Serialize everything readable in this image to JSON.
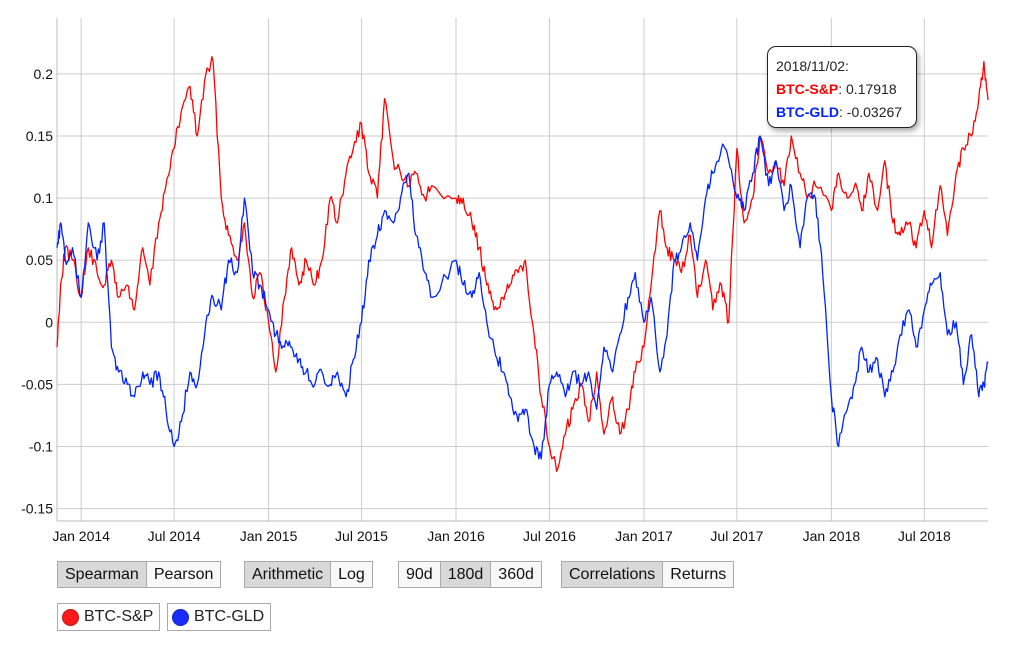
{
  "chart_data": {
    "type": "line",
    "title": "",
    "xlabel": "",
    "ylabel": "",
    "x_range": [
      "2013-11-15",
      "2018-11-02"
    ],
    "ylim": [
      -0.16,
      0.245
    ],
    "grid": true,
    "x_tick_labels": [
      {
        "date": "2014-01-01",
        "label": "Jan 2014"
      },
      {
        "date": "2014-07-01",
        "label": "Jul 2014"
      },
      {
        "date": "2015-01-01",
        "label": "Jan 2015"
      },
      {
        "date": "2015-07-01",
        "label": "Jul 2015"
      },
      {
        "date": "2016-01-01",
        "label": "Jan 2016"
      },
      {
        "date": "2016-07-01",
        "label": "Jul 2016"
      },
      {
        "date": "2017-01-01",
        "label": "Jan 2017"
      },
      {
        "date": "2017-07-01",
        "label": "Jul 2017"
      },
      {
        "date": "2018-01-01",
        "label": "Jan 2018"
      },
      {
        "date": "2018-07-01",
        "label": "Jul 2018"
      }
    ],
    "y_tick_labels": [
      {
        "value": 0.2,
        "label": "0.2"
      },
      {
        "value": 0.15,
        "label": "0.15"
      },
      {
        "value": 0.1,
        "label": "0.1"
      },
      {
        "value": 0.05,
        "label": "0.05"
      },
      {
        "value": 0,
        "label": "0"
      },
      {
        "value": -0.05,
        "label": "-0.05"
      },
      {
        "value": -0.1,
        "label": "-0.1"
      },
      {
        "value": -0.15,
        "label": "-0.15"
      }
    ],
    "series": [
      {
        "name": "BTC-S&P",
        "color": "#ff0000",
        "points": [
          [
            "2013-11-15",
            -0.02
          ],
          [
            "2013-11-22",
            0.03
          ],
          [
            "2013-12-01",
            0.06
          ],
          [
            "2013-12-15",
            0.05
          ],
          [
            "2014-01-01",
            0.02
          ],
          [
            "2014-01-15",
            0.06
          ],
          [
            "2014-02-01",
            0.04
          ],
          [
            "2014-02-15",
            0.03
          ],
          [
            "2014-03-01",
            0.05
          ],
          [
            "2014-03-15",
            0.02
          ],
          [
            "2014-04-01",
            0.03
          ],
          [
            "2014-04-15",
            0.01
          ],
          [
            "2014-05-01",
            0.06
          ],
          [
            "2014-05-15",
            0.03
          ],
          [
            "2014-06-01",
            0.08
          ],
          [
            "2014-06-15",
            0.11
          ],
          [
            "2014-07-01",
            0.14
          ],
          [
            "2014-07-15",
            0.17
          ],
          [
            "2014-08-01",
            0.19
          ],
          [
            "2014-08-15",
            0.15
          ],
          [
            "2014-09-01",
            0.2
          ],
          [
            "2014-09-15",
            0.21
          ],
          [
            "2014-10-01",
            0.1
          ],
          [
            "2014-10-15",
            0.07
          ],
          [
            "2014-11-01",
            0.05
          ],
          [
            "2014-11-15",
            0.08
          ],
          [
            "2014-12-01",
            0.02
          ],
          [
            "2014-12-15",
            0.04
          ],
          [
            "2015-01-01",
            0.0
          ],
          [
            "2015-01-15",
            -0.04
          ],
          [
            "2015-02-01",
            0.02
          ],
          [
            "2015-02-15",
            0.06
          ],
          [
            "2015-03-01",
            0.03
          ],
          [
            "2015-03-15",
            0.05
          ],
          [
            "2015-04-01",
            0.03
          ],
          [
            "2015-04-15",
            0.05
          ],
          [
            "2015-05-01",
            0.1
          ],
          [
            "2015-05-15",
            0.08
          ],
          [
            "2015-06-01",
            0.12
          ],
          [
            "2015-06-15",
            0.14
          ],
          [
            "2015-07-01",
            0.16
          ],
          [
            "2015-07-15",
            0.12
          ],
          [
            "2015-08-01",
            0.1
          ],
          [
            "2015-08-15",
            0.18
          ],
          [
            "2015-09-01",
            0.13
          ],
          [
            "2015-09-15",
            0.12
          ],
          [
            "2015-10-01",
            0.11
          ],
          [
            "2015-10-15",
            0.12
          ],
          [
            "2015-11-01",
            0.1
          ],
          [
            "2015-11-15",
            0.11
          ],
          [
            "2016-01-01",
            0.1
          ],
          [
            "2016-01-15",
            0.1
          ],
          [
            "2016-02-01",
            0.08
          ],
          [
            "2016-02-15",
            0.06
          ],
          [
            "2016-03-01",
            0.03
          ],
          [
            "2016-03-15",
            0.01
          ],
          [
            "2016-04-01",
            0.02
          ],
          [
            "2016-04-15",
            0.03
          ],
          [
            "2016-05-01",
            0.04
          ],
          [
            "2016-05-15",
            0.05
          ],
          [
            "2016-06-01",
            -0.01
          ],
          [
            "2016-06-15",
            -0.06
          ],
          [
            "2016-07-01",
            -0.1
          ],
          [
            "2016-07-15",
            -0.12
          ],
          [
            "2016-08-01",
            -0.09
          ],
          [
            "2016-08-15",
            -0.07
          ],
          [
            "2016-09-01",
            -0.05
          ],
          [
            "2016-09-15",
            -0.08
          ],
          [
            "2016-10-01",
            -0.04
          ],
          [
            "2016-10-15",
            -0.09
          ],
          [
            "2016-11-01",
            -0.06
          ],
          [
            "2016-11-15",
            -0.09
          ],
          [
            "2016-12-01",
            -0.07
          ],
          [
            "2016-12-15",
            -0.04
          ],
          [
            "2017-01-01",
            -0.02
          ],
          [
            "2017-01-15",
            0.03
          ],
          [
            "2017-02-01",
            0.09
          ],
          [
            "2017-02-15",
            0.06
          ],
          [
            "2017-03-01",
            0.05
          ],
          [
            "2017-03-15",
            0.04
          ],
          [
            "2017-04-01",
            0.07
          ],
          [
            "2017-04-15",
            0.02
          ],
          [
            "2017-05-01",
            0.05
          ],
          [
            "2017-05-15",
            0.01
          ],
          [
            "2017-06-01",
            0.03
          ],
          [
            "2017-06-15",
            0.0
          ],
          [
            "2017-07-01",
            0.14
          ],
          [
            "2017-07-15",
            0.08
          ],
          [
            "2017-08-01",
            0.1
          ],
          [
            "2017-08-15",
            0.15
          ],
          [
            "2017-09-01",
            0.12
          ],
          [
            "2017-09-15",
            0.13
          ],
          [
            "2017-10-01",
            0.11
          ],
          [
            "2017-10-15",
            0.15
          ],
          [
            "2017-11-01",
            0.12
          ],
          [
            "2017-11-15",
            0.1
          ],
          [
            "2017-12-01",
            0.11
          ],
          [
            "2018-01-01",
            0.09
          ],
          [
            "2018-01-15",
            0.12
          ],
          [
            "2018-02-01",
            0.1
          ],
          [
            "2018-02-15",
            0.11
          ],
          [
            "2018-03-01",
            0.09
          ],
          [
            "2018-03-15",
            0.12
          ],
          [
            "2018-04-01",
            0.09
          ],
          [
            "2018-04-15",
            0.13
          ],
          [
            "2018-05-01",
            0.08
          ],
          [
            "2018-05-15",
            0.07
          ],
          [
            "2018-06-01",
            0.08
          ],
          [
            "2018-06-15",
            0.06
          ],
          [
            "2018-07-01",
            0.09
          ],
          [
            "2018-07-15",
            0.06
          ],
          [
            "2018-08-01",
            0.11
          ],
          [
            "2018-08-15",
            0.07
          ],
          [
            "2018-09-01",
            0.12
          ],
          [
            "2018-09-15",
            0.14
          ],
          [
            "2018-10-01",
            0.15
          ],
          [
            "2018-10-15",
            0.18
          ],
          [
            "2018-10-25",
            0.21
          ],
          [
            "2018-11-02",
            0.179
          ]
        ]
      },
      {
        "name": "BTC-GLD",
        "color": "#0022ff",
        "points": [
          [
            "2013-11-15",
            0.06
          ],
          [
            "2013-11-22",
            0.08
          ],
          [
            "2013-12-01",
            0.05
          ],
          [
            "2013-12-15",
            0.06
          ],
          [
            "2014-01-01",
            0.02
          ],
          [
            "2014-01-15",
            0.08
          ],
          [
            "2014-02-01",
            0.05
          ],
          [
            "2014-02-15",
            0.08
          ],
          [
            "2014-03-01",
            -0.02
          ],
          [
            "2014-03-15",
            -0.04
          ],
          [
            "2014-04-01",
            -0.05
          ],
          [
            "2014-04-15",
            -0.06
          ],
          [
            "2014-05-01",
            -0.04
          ],
          [
            "2014-05-15",
            -0.05
          ],
          [
            "2014-06-01",
            -0.04
          ],
          [
            "2014-06-15",
            -0.07
          ],
          [
            "2014-07-01",
            -0.1
          ],
          [
            "2014-07-15",
            -0.08
          ],
          [
            "2014-08-01",
            -0.04
          ],
          [
            "2014-08-15",
            -0.05
          ],
          [
            "2014-09-01",
            0.0
          ],
          [
            "2014-09-15",
            0.02
          ],
          [
            "2014-10-01",
            0.01
          ],
          [
            "2014-10-15",
            0.05
          ],
          [
            "2014-11-01",
            0.04
          ],
          [
            "2014-11-15",
            0.1
          ],
          [
            "2014-12-01",
            0.04
          ],
          [
            "2014-12-15",
            0.03
          ],
          [
            "2015-01-01",
            0.01
          ],
          [
            "2015-01-15",
            -0.01
          ],
          [
            "2015-02-01",
            -0.02
          ],
          [
            "2015-02-15",
            -0.02
          ],
          [
            "2015-03-01",
            -0.03
          ],
          [
            "2015-03-15",
            -0.04
          ],
          [
            "2015-04-01",
            -0.05
          ],
          [
            "2015-04-15",
            -0.04
          ],
          [
            "2015-05-01",
            -0.05
          ],
          [
            "2015-05-15",
            -0.04
          ],
          [
            "2015-06-01",
            -0.06
          ],
          [
            "2015-06-15",
            -0.03
          ],
          [
            "2015-07-01",
            0.0
          ],
          [
            "2015-07-15",
            0.05
          ],
          [
            "2015-08-01",
            0.07
          ],
          [
            "2015-08-15",
            0.09
          ],
          [
            "2015-09-01",
            0.08
          ],
          [
            "2015-09-15",
            0.1
          ],
          [
            "2015-10-01",
            0.12
          ],
          [
            "2015-10-15",
            0.07
          ],
          [
            "2015-11-01",
            0.04
          ],
          [
            "2015-11-15",
            0.02
          ],
          [
            "2016-01-01",
            0.05
          ],
          [
            "2016-01-15",
            0.03
          ],
          [
            "2016-02-01",
            0.02
          ],
          [
            "2016-02-15",
            0.04
          ],
          [
            "2016-03-01",
            0.0
          ],
          [
            "2016-03-15",
            -0.02
          ],
          [
            "2016-04-01",
            -0.04
          ],
          [
            "2016-04-15",
            -0.06
          ],
          [
            "2016-05-01",
            -0.08
          ],
          [
            "2016-05-15",
            -0.07
          ],
          [
            "2016-06-01",
            -0.1
          ],
          [
            "2016-06-15",
            -0.11
          ],
          [
            "2016-07-01",
            -0.05
          ],
          [
            "2016-07-15",
            -0.04
          ],
          [
            "2016-08-01",
            -0.06
          ],
          [
            "2016-08-15",
            -0.04
          ],
          [
            "2016-09-01",
            -0.05
          ],
          [
            "2016-09-15",
            -0.04
          ],
          [
            "2016-10-01",
            -0.07
          ],
          [
            "2016-10-15",
            -0.02
          ],
          [
            "2016-11-01",
            -0.04
          ],
          [
            "2016-11-15",
            -0.01
          ],
          [
            "2016-12-01",
            0.02
          ],
          [
            "2016-12-15",
            0.04
          ],
          [
            "2017-01-01",
            0.0
          ],
          [
            "2017-01-15",
            0.02
          ],
          [
            "2017-02-01",
            -0.04
          ],
          [
            "2017-02-15",
            -0.01
          ],
          [
            "2017-03-01",
            0.05
          ],
          [
            "2017-03-15",
            0.06
          ],
          [
            "2017-04-01",
            0.08
          ],
          [
            "2017-04-15",
            0.05
          ],
          [
            "2017-05-01",
            0.1
          ],
          [
            "2017-05-15",
            0.12
          ],
          [
            "2017-06-01",
            0.14
          ],
          [
            "2017-06-15",
            0.13
          ],
          [
            "2017-07-01",
            0.1
          ],
          [
            "2017-07-15",
            0.09
          ],
          [
            "2017-08-01",
            0.12
          ],
          [
            "2017-08-15",
            0.15
          ],
          [
            "2017-09-01",
            0.11
          ],
          [
            "2017-09-15",
            0.13
          ],
          [
            "2017-10-01",
            0.09
          ],
          [
            "2017-10-15",
            0.11
          ],
          [
            "2017-11-01",
            0.06
          ],
          [
            "2017-11-15",
            0.1
          ],
          [
            "2017-12-01",
            0.1
          ],
          [
            "2017-12-15",
            0.04
          ],
          [
            "2018-01-01",
            -0.06
          ],
          [
            "2018-01-15",
            -0.1
          ],
          [
            "2018-02-01",
            -0.07
          ],
          [
            "2018-02-15",
            -0.05
          ],
          [
            "2018-03-01",
            -0.02
          ],
          [
            "2018-03-15",
            -0.04
          ],
          [
            "2018-04-01",
            -0.03
          ],
          [
            "2018-04-15",
            -0.06
          ],
          [
            "2018-05-01",
            -0.04
          ],
          [
            "2018-05-15",
            -0.01
          ],
          [
            "2018-06-01",
            0.01
          ],
          [
            "2018-06-15",
            -0.02
          ],
          [
            "2018-07-01",
            0.01
          ],
          [
            "2018-07-15",
            0.03
          ],
          [
            "2018-08-01",
            0.04
          ],
          [
            "2018-08-15",
            -0.01
          ],
          [
            "2018-09-01",
            0.0
          ],
          [
            "2018-09-15",
            -0.05
          ],
          [
            "2018-10-01",
            -0.01
          ],
          [
            "2018-10-15",
            -0.06
          ],
          [
            "2018-10-25",
            -0.05
          ],
          [
            "2018-11-02",
            -0.033
          ]
        ]
      }
    ]
  },
  "tooltip": {
    "date": "2018/11/02:",
    "rows": [
      {
        "name": "BTC-S&P",
        "sep": ":",
        "value": " 0.17918",
        "color": "#ff0000"
      },
      {
        "name": "BTC-GLD",
        "sep": ":",
        "value": " -0.03267",
        "color": "#0022ff"
      }
    ]
  },
  "controls": {
    "method": {
      "options": [
        "Spearman",
        "Pearson"
      ],
      "selected": "Spearman"
    },
    "scale": {
      "options": [
        "Arithmetic",
        "Log"
      ],
      "selected": "Arithmetic"
    },
    "window": {
      "options": [
        "90d",
        "180d",
        "360d"
      ],
      "selected": "180d"
    },
    "view": {
      "options": [
        "Correlations",
        "Returns"
      ],
      "selected": "Correlations"
    }
  },
  "legend": [
    {
      "name": "BTC-S&P",
      "color": "#ff1a1a"
    },
    {
      "name": "BTC-GLD",
      "color": "#1a2bff"
    }
  ]
}
